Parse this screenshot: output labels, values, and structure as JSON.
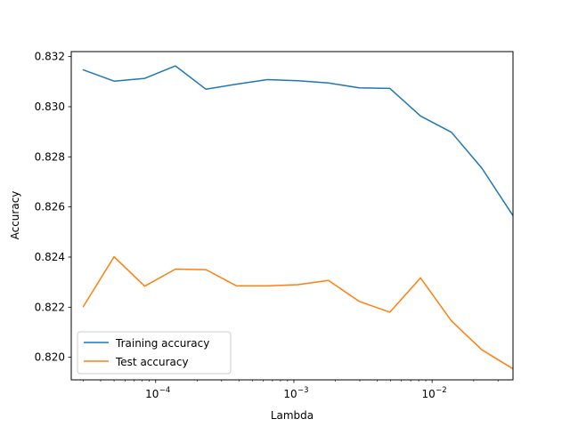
{
  "chart_data": {
    "type": "line",
    "title": "",
    "xlabel": "Lambda",
    "ylabel": "Accuracy",
    "xscale": "log",
    "xlim": [
      2.45e-05,
      0.0385
    ],
    "ylim": [
      0.8191,
      0.8322
    ],
    "grid": false,
    "legend_position": "lower-left",
    "x": [
      3e-05,
      5e-05,
      8.33e-05,
      0.000139,
      0.000231,
      0.000385,
      0.000642,
      0.00107,
      0.00178,
      0.00297,
      0.00495,
      0.00825,
      0.0138,
      0.0229,
      0.0382
    ],
    "series": [
      {
        "name": "Training accuracy",
        "color": "#1f77b4",
        "values": [
          0.83147,
          0.83102,
          0.83113,
          0.83163,
          0.8307,
          0.8309,
          0.83108,
          0.83104,
          0.83095,
          0.83075,
          0.83073,
          0.82963,
          0.82898,
          0.82755,
          0.82568
        ]
      },
      {
        "name": "Test accuracy",
        "color": "#ff7f0e",
        "values": [
          0.82203,
          0.82401,
          0.82284,
          0.82352,
          0.8235,
          0.82285,
          0.82285,
          0.8229,
          0.82307,
          0.82223,
          0.8218,
          0.82317,
          0.82145,
          0.8203,
          0.81955
        ]
      }
    ],
    "yticks": [
      {
        "value": 0.82,
        "label": "0.820"
      },
      {
        "value": 0.822,
        "label": "0.822"
      },
      {
        "value": 0.824,
        "label": "0.824"
      },
      {
        "value": 0.826,
        "label": "0.826"
      },
      {
        "value": 0.828,
        "label": "0.828"
      },
      {
        "value": 0.83,
        "label": "0.830"
      },
      {
        "value": 0.832,
        "label": "0.832"
      }
    ],
    "xticks_major": [
      {
        "value": 0.0001,
        "label": "10",
        "exp": "−4"
      },
      {
        "value": 0.001,
        "label": "10",
        "exp": "−3"
      },
      {
        "value": 0.01,
        "label": "10",
        "exp": "−2"
      }
    ],
    "xticks_minor": [
      3e-05,
      4e-05,
      5e-05,
      6e-05,
      7e-05,
      8e-05,
      9e-05,
      0.0002,
      0.0003,
      0.0004,
      0.0005,
      0.0006,
      0.0007,
      0.0008,
      0.0009,
      0.002,
      0.003,
      0.004,
      0.005,
      0.006,
      0.007,
      0.008,
      0.009,
      0.02,
      0.03
    ]
  }
}
